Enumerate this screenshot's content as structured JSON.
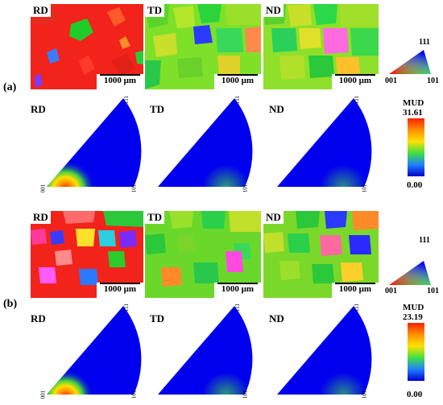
{
  "row_a": {
    "panel_label": "(a)",
    "maps": [
      "RD",
      "TD",
      "ND"
    ],
    "scale_label": "1000 μm",
    "pole_figures": [
      "RD",
      "TD",
      "ND"
    ],
    "pf_axes": {
      "origin": "001",
      "right": "101",
      "top": "111"
    },
    "key": {
      "top": "111",
      "left": "001",
      "right": "101"
    },
    "mud": {
      "title": "MUD",
      "max": "31.61",
      "min": "0.00"
    }
  },
  "row_b": {
    "panel_label": "(b)",
    "maps": [
      "RD",
      "TD",
      "ND"
    ],
    "scale_label": "1000 μm",
    "pole_figures": [
      "RD",
      "TD",
      "ND"
    ],
    "pf_axes": {
      "origin": "001",
      "right": "101",
      "top": "111"
    },
    "key": {
      "top": "111",
      "left": "001",
      "right": "101"
    },
    "mud": {
      "title": "MUD",
      "max": "23.19",
      "min": "0.00"
    }
  },
  "colors": {
    "ipf_red": "#ff2a1a",
    "ipf_green": "#22e022",
    "ipf_blue": "#1a1aff",
    "mud_low": "#0000cc",
    "mud_high": "#ff2000"
  }
}
